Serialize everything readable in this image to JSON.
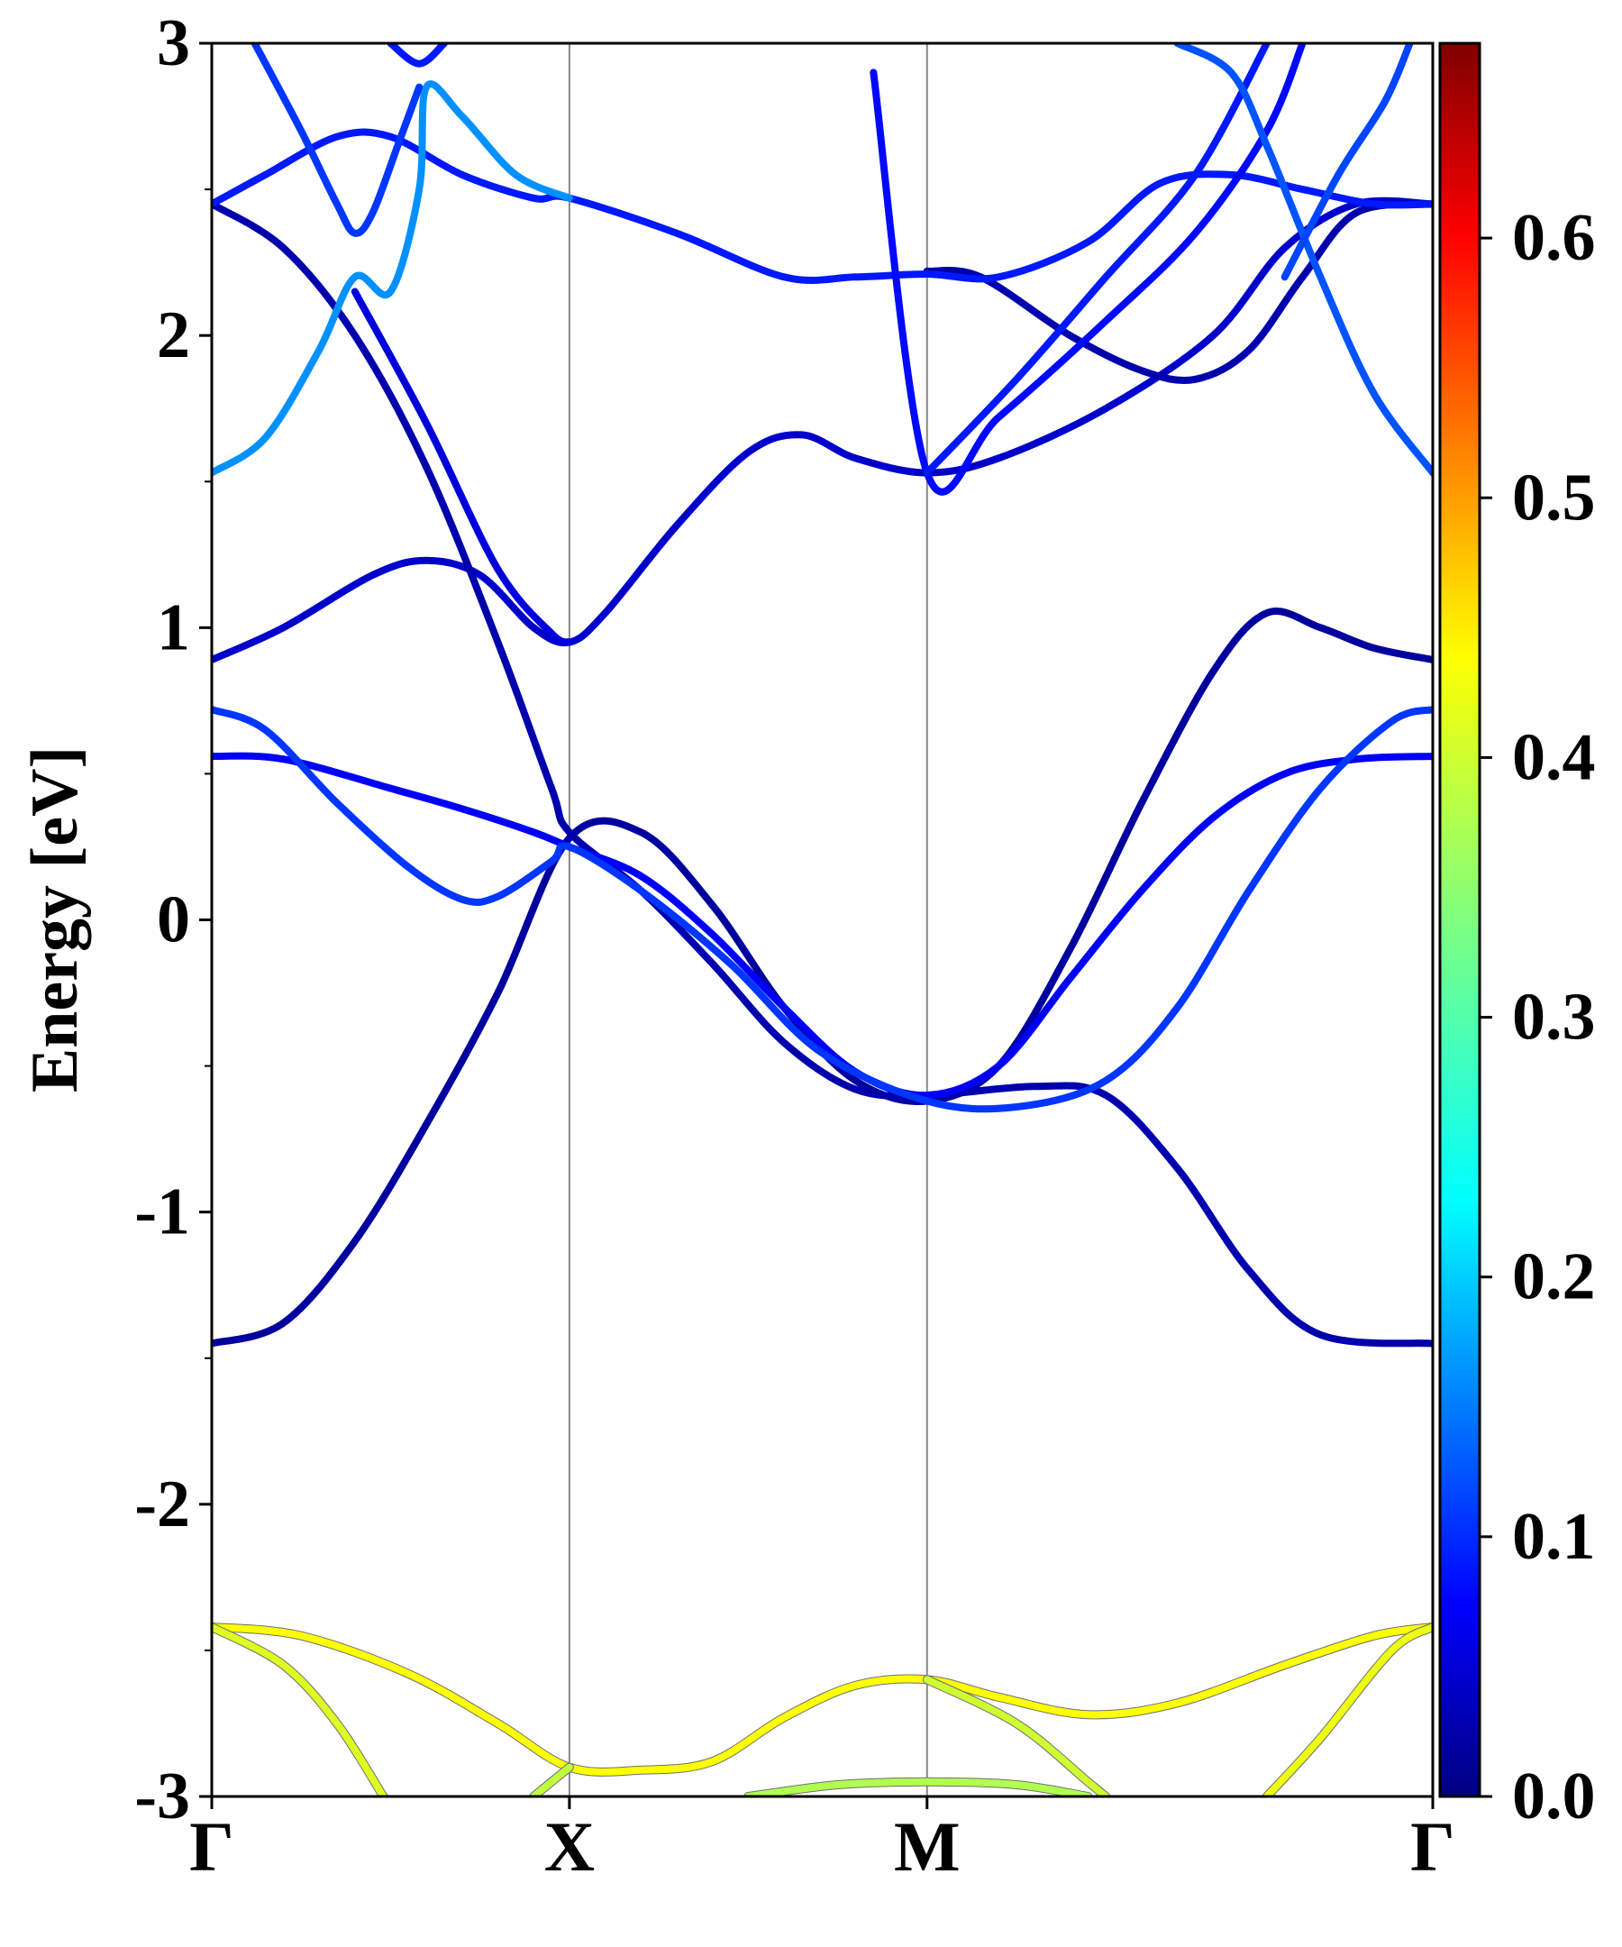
{
  "chart_data": {
    "type": "line",
    "title": "",
    "ylabel": "Energy [eV]",
    "xlabel": "",
    "ylim": [
      -3,
      3
    ],
    "y_ticks": [
      {
        "value": 3,
        "label": "3"
      },
      {
        "value": 2,
        "label": "2"
      },
      {
        "value": 1,
        "label": "1"
      },
      {
        "value": 0,
        "label": "0"
      },
      {
        "value": -1,
        "label": "-1"
      },
      {
        "value": -2,
        "label": "-2"
      },
      {
        "value": -3,
        "label": "-3"
      }
    ],
    "y_minor_ticks": [
      2.5,
      1.5,
      0.5,
      -0.5,
      -1.5,
      -2.5
    ],
    "k_path": [
      {
        "label": "Γ",
        "k": 0.0
      },
      {
        "label": "X",
        "k": 1.0
      },
      {
        "label": "M",
        "k": 2.0
      },
      {
        "label": "Γ",
        "k": 3.414
      }
    ],
    "grid": false,
    "colorbar": {
      "colormap": "jet",
      "range": [
        0.0,
        0.675
      ],
      "ticks": [
        {
          "value": 0.0,
          "label": "0.0"
        },
        {
          "value": 0.1,
          "label": "0.1"
        },
        {
          "value": 0.2,
          "label": "0.2"
        },
        {
          "value": 0.3,
          "label": "0.3"
        },
        {
          "value": 0.4,
          "label": "0.4"
        },
        {
          "value": 0.5,
          "label": "0.5"
        },
        {
          "value": 0.6,
          "label": "0.6"
        }
      ]
    },
    "series": [
      {
        "weight": 0.02,
        "points": [
          [
            0,
            -1.45
          ],
          [
            0.2,
            -1.38
          ],
          [
            0.4,
            -1.1
          ],
          [
            0.6,
            -0.7
          ],
          [
            0.8,
            -0.25
          ],
          [
            1.0,
            0.28
          ],
          [
            1.2,
            0.3
          ],
          [
            1.4,
            0.05
          ],
          [
            1.6,
            -0.3
          ],
          [
            1.8,
            -0.55
          ],
          [
            2.0,
            -0.62
          ],
          [
            2.2,
            -0.5
          ],
          [
            2.4,
            -0.1
          ],
          [
            2.6,
            0.4
          ],
          [
            2.8,
            0.85
          ],
          [
            2.95,
            1.05
          ],
          [
            3.1,
            1.0
          ],
          [
            3.25,
            0.93
          ],
          [
            3.414,
            0.89
          ]
        ]
      },
      {
        "weight": 0.05,
        "points": [
          [
            0,
            0.89
          ],
          [
            0.2,
            1.0
          ],
          [
            0.45,
            1.18
          ],
          [
            0.6,
            1.23
          ],
          [
            0.75,
            1.18
          ],
          [
            0.9,
            1.0
          ],
          [
            1.0,
            0.95
          ],
          [
            1.1,
            1.05
          ],
          [
            1.3,
            1.35
          ],
          [
            1.5,
            1.6
          ],
          [
            1.65,
            1.66
          ],
          [
            1.8,
            1.58
          ],
          [
            2.0,
            1.53
          ],
          [
            2.2,
            1.58
          ],
          [
            2.5,
            1.75
          ],
          [
            2.8,
            2.0
          ],
          [
            3.0,
            2.3
          ],
          [
            3.2,
            2.45
          ],
          [
            3.414,
            2.45
          ]
        ]
      },
      {
        "weight": 0.03,
        "points": [
          [
            0,
            2.45
          ],
          [
            0.2,
            2.3
          ],
          [
            0.4,
            2.0
          ],
          [
            0.6,
            1.55
          ],
          [
            0.8,
            0.95
          ],
          [
            0.95,
            0.45
          ],
          [
            1.0,
            0.3
          ],
          [
            1.2,
            0.1
          ],
          [
            1.4,
            -0.15
          ],
          [
            1.6,
            -0.42
          ],
          [
            1.8,
            -0.58
          ],
          [
            2.0,
            -0.6
          ],
          [
            2.3,
            -0.57
          ],
          [
            2.5,
            -0.6
          ],
          [
            2.7,
            -0.85
          ],
          [
            2.9,
            -1.2
          ],
          [
            3.1,
            -1.42
          ],
          [
            3.414,
            -1.45
          ]
        ]
      },
      {
        "weight": 0.03,
        "points": [
          [
            2.0,
            2.22
          ],
          [
            2.15,
            2.2
          ],
          [
            2.4,
            2.0
          ],
          [
            2.6,
            1.88
          ],
          [
            2.75,
            1.85
          ],
          [
            2.9,
            1.95
          ],
          [
            3.05,
            2.2
          ],
          [
            3.2,
            2.42
          ],
          [
            3.414,
            2.45
          ]
        ]
      },
      {
        "weight": 0.08,
        "points": [
          [
            0,
            0.56
          ],
          [
            0.2,
            0.55
          ],
          [
            0.5,
            0.45
          ],
          [
            0.7,
            0.38
          ],
          [
            0.9,
            0.3
          ],
          [
            1.0,
            0.25
          ],
          [
            1.2,
            0.15
          ],
          [
            1.4,
            -0.05
          ],
          [
            1.6,
            -0.3
          ],
          [
            1.8,
            -0.52
          ],
          [
            2.0,
            -0.6
          ],
          [
            2.2,
            -0.5
          ],
          [
            2.4,
            -0.2
          ],
          [
            2.6,
            0.1
          ],
          [
            2.8,
            0.35
          ],
          [
            3.0,
            0.5
          ],
          [
            3.2,
            0.55
          ],
          [
            3.414,
            0.56
          ]
        ]
      },
      {
        "weight": 0.12,
        "points": [
          [
            0,
            0.72
          ],
          [
            0.15,
            0.65
          ],
          [
            0.35,
            0.4
          ],
          [
            0.55,
            0.18
          ],
          [
            0.7,
            0.07
          ],
          [
            0.8,
            0.08
          ],
          [
            0.95,
            0.2
          ],
          [
            1.0,
            0.25
          ],
          [
            1.2,
            0.1
          ],
          [
            1.45,
            -0.15
          ],
          [
            1.7,
            -0.45
          ],
          [
            2.0,
            -0.62
          ],
          [
            2.25,
            -0.64
          ],
          [
            2.5,
            -0.55
          ],
          [
            2.7,
            -0.3
          ],
          [
            2.9,
            0.1
          ],
          [
            3.1,
            0.45
          ],
          [
            3.3,
            0.68
          ],
          [
            3.414,
            0.72
          ]
        ]
      },
      {
        "weight": 0.06,
        "points": [
          [
            0.4,
            2.15
          ],
          [
            0.6,
            1.7
          ],
          [
            0.8,
            1.2
          ],
          [
            0.95,
            0.98
          ],
          [
            1.0,
            0.95
          ]
        ]
      },
      {
        "weight": 0.1,
        "points": [
          [
            0,
            2.45
          ],
          [
            0.15,
            2.55
          ],
          [
            0.35,
            2.68
          ],
          [
            0.5,
            2.68
          ],
          [
            0.7,
            2.55
          ],
          [
            0.9,
            2.47
          ],
          [
            1.0,
            2.47
          ],
          [
            1.3,
            2.35
          ],
          [
            1.6,
            2.2
          ],
          [
            1.8,
            2.2
          ],
          [
            2.0,
            2.21
          ],
          [
            2.2,
            2.2
          ],
          [
            2.45,
            2.32
          ],
          [
            2.65,
            2.52
          ],
          [
            2.85,
            2.55
          ],
          [
            3.05,
            2.5
          ],
          [
            3.25,
            2.45
          ],
          [
            3.414,
            2.45
          ]
        ]
      },
      {
        "weight": 0.09,
        "points": [
          [
            1.85,
            2.9
          ],
          [
            2.0,
            1.53
          ],
          [
            2.2,
            1.72
          ],
          [
            2.5,
            2.05
          ],
          [
            2.75,
            2.35
          ],
          [
            2.95,
            2.7
          ],
          [
            3.05,
            3.0
          ]
        ]
      },
      {
        "weight": 0.1,
        "points": [
          [
            2.0,
            1.53
          ],
          [
            2.25,
            1.85
          ],
          [
            2.5,
            2.2
          ],
          [
            2.75,
            2.55
          ],
          [
            2.95,
            3.0
          ]
        ]
      },
      {
        "weight": 0.14,
        "points": [
          [
            2.7,
            3.0
          ],
          [
            2.85,
            2.9
          ],
          [
            2.95,
            2.65
          ],
          [
            3.1,
            2.2
          ],
          [
            3.25,
            1.8
          ],
          [
            3.414,
            1.53
          ]
        ]
      },
      {
        "weight": 0.13,
        "points": [
          [
            3.0,
            2.2
          ],
          [
            3.15,
            2.55
          ],
          [
            3.28,
            2.8
          ],
          [
            3.35,
            3.0
          ]
        ]
      },
      {
        "weight": 0.18,
        "points": [
          [
            0,
            1.53
          ],
          [
            0.15,
            1.65
          ],
          [
            0.3,
            1.95
          ],
          [
            0.4,
            2.2
          ],
          [
            0.5,
            2.15
          ],
          [
            0.58,
            2.5
          ],
          [
            0.6,
            2.85
          ],
          [
            0.7,
            2.75
          ],
          [
            0.85,
            2.55
          ],
          [
            1.0,
            2.47
          ]
        ]
      },
      {
        "weight": 0.12,
        "points": [
          [
            0.12,
            3.0
          ],
          [
            0.25,
            2.7
          ],
          [
            0.35,
            2.45
          ],
          [
            0.4,
            2.35
          ],
          [
            0.45,
            2.42
          ],
          [
            0.52,
            2.65
          ],
          [
            0.58,
            2.85
          ]
        ]
      },
      {
        "weight": 0.1,
        "points": [
          [
            0.5,
            3.0
          ],
          [
            0.58,
            2.93
          ],
          [
            0.65,
            3.0
          ]
        ]
      },
      {
        "weight": 0.42,
        "points": [
          [
            0,
            -2.42
          ],
          [
            0.25,
            -2.45
          ],
          [
            0.55,
            -2.58
          ],
          [
            0.8,
            -2.75
          ],
          [
            1.0,
            -2.9
          ],
          [
            1.2,
            -2.91
          ],
          [
            1.4,
            -2.88
          ],
          [
            1.6,
            -2.73
          ],
          [
            1.8,
            -2.62
          ],
          [
            2.0,
            -2.6
          ],
          [
            2.2,
            -2.66
          ],
          [
            2.45,
            -2.72
          ],
          [
            2.7,
            -2.68
          ],
          [
            3.0,
            -2.55
          ],
          [
            3.25,
            -2.45
          ],
          [
            3.414,
            -2.42
          ]
        ]
      },
      {
        "weight": 0.4,
        "points": [
          [
            0,
            -2.42
          ],
          [
            0.2,
            -2.55
          ],
          [
            0.35,
            -2.75
          ],
          [
            0.48,
            -3.0
          ]
        ]
      },
      {
        "weight": 0.38,
        "points": [
          [
            0.9,
            -3.0
          ],
          [
            1.0,
            -2.9
          ]
        ]
      },
      {
        "weight": 0.37,
        "points": [
          [
            1.5,
            -3.0
          ],
          [
            1.75,
            -2.96
          ],
          [
            2.0,
            -2.95
          ],
          [
            2.25,
            -2.96
          ],
          [
            2.45,
            -3.0
          ]
        ]
      },
      {
        "weight": 0.39,
        "points": [
          [
            2.0,
            -2.6
          ],
          [
            2.25,
            -2.75
          ],
          [
            2.45,
            -2.95
          ],
          [
            2.5,
            -3.0
          ]
        ]
      },
      {
        "weight": 0.41,
        "points": [
          [
            2.95,
            -3.0
          ],
          [
            3.1,
            -2.8
          ],
          [
            3.3,
            -2.5
          ],
          [
            3.414,
            -2.42
          ]
        ]
      }
    ]
  }
}
